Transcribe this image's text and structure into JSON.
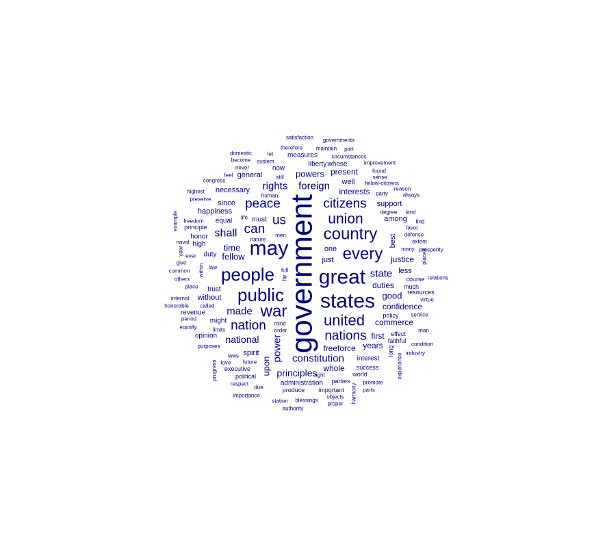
{
  "word_cloud": {
    "color": "#00008b",
    "words": [
      {
        "text": "government"
      },
      {
        "text": "great"
      },
      {
        "text": "states"
      },
      {
        "text": "may"
      },
      {
        "text": "people"
      },
      {
        "text": "public"
      },
      {
        "text": "country"
      },
      {
        "text": "every"
      },
      {
        "text": "war"
      },
      {
        "text": "united"
      },
      {
        "text": "union"
      },
      {
        "text": "nations"
      },
      {
        "text": "citizens"
      },
      {
        "text": "peace"
      },
      {
        "text": "nation"
      },
      {
        "text": "can"
      },
      {
        "text": "us"
      },
      {
        "text": "shall"
      },
      {
        "text": "constitution"
      },
      {
        "text": "made"
      },
      {
        "text": "foreign"
      },
      {
        "text": "state"
      },
      {
        "text": "power"
      },
      {
        "text": "rights"
      },
      {
        "text": "principles"
      },
      {
        "text": "national"
      },
      {
        "text": "upon"
      },
      {
        "text": "powers"
      },
      {
        "text": "time"
      },
      {
        "text": "fellow"
      },
      {
        "text": "interests"
      },
      {
        "text": "good"
      },
      {
        "text": "confidence"
      },
      {
        "text": "commerce"
      },
      {
        "text": "justice"
      },
      {
        "text": "duties"
      },
      {
        "text": "years"
      },
      {
        "text": "whole"
      },
      {
        "text": "freeforce"
      },
      {
        "text": "first"
      },
      {
        "text": "present"
      },
      {
        "text": "support"
      },
      {
        "text": "without"
      },
      {
        "text": "general"
      },
      {
        "text": "less"
      },
      {
        "text": "among"
      },
      {
        "text": "happiness"
      },
      {
        "text": "necessary"
      },
      {
        "text": "spirit"
      },
      {
        "text": "administration"
      },
      {
        "text": "interest"
      },
      {
        "text": "equal"
      },
      {
        "text": "best"
      },
      {
        "text": "one"
      },
      {
        "text": "just"
      },
      {
        "text": "well"
      },
      {
        "text": "since"
      },
      {
        "text": "whose"
      },
      {
        "text": "liberty"
      },
      {
        "text": "measures"
      },
      {
        "text": "now"
      },
      {
        "text": "duty"
      },
      {
        "text": "honor"
      },
      {
        "text": "high"
      },
      {
        "text": "might"
      },
      {
        "text": "opinion"
      },
      {
        "text": "revenue"
      },
      {
        "text": "trust"
      },
      {
        "text": "must"
      },
      {
        "text": "success"
      },
      {
        "text": "long"
      },
      {
        "text": "effect"
      },
      {
        "text": "faithful"
      },
      {
        "text": "policy"
      },
      {
        "text": "course"
      },
      {
        "text": "resources"
      },
      {
        "text": "much"
      },
      {
        "text": "principle"
      },
      {
        "text": "executive"
      },
      {
        "text": "political"
      },
      {
        "text": "produce"
      },
      {
        "text": "important"
      },
      {
        "text": "parties"
      },
      {
        "text": "world"
      },
      {
        "text": "future"
      },
      {
        "text": "laws"
      },
      {
        "text": "love"
      },
      {
        "text": "respect"
      },
      {
        "text": "due"
      },
      {
        "text": "importance"
      },
      {
        "text": "station"
      },
      {
        "text": "blessings"
      },
      {
        "text": "objects"
      },
      {
        "text": "proper"
      },
      {
        "text": "authority"
      },
      {
        "text": "harmony"
      },
      {
        "text": "parts"
      },
      {
        "text": "promote"
      },
      {
        "text": "experience"
      },
      {
        "text": "industry"
      },
      {
        "text": "condition"
      },
      {
        "text": "man"
      },
      {
        "text": "service"
      },
      {
        "text": "virtue"
      },
      {
        "text": "relations"
      },
      {
        "text": "placed"
      },
      {
        "text": "prosperity"
      },
      {
        "text": "many"
      },
      {
        "text": "extent"
      },
      {
        "text": "defense"
      },
      {
        "text": "favor"
      },
      {
        "text": "find"
      },
      {
        "text": "land"
      },
      {
        "text": "degree"
      },
      {
        "text": "party"
      },
      {
        "text": "always"
      },
      {
        "text": "reason"
      },
      {
        "text": "sense"
      },
      {
        "text": "found"
      },
      {
        "text": "improvement"
      },
      {
        "text": "fellow-citizens"
      },
      {
        "text": "circumstances"
      },
      {
        "text": "part"
      },
      {
        "text": "maintain"
      },
      {
        "text": "governments"
      },
      {
        "text": "satisfaction"
      },
      {
        "text": "therefore"
      },
      {
        "text": "let"
      },
      {
        "text": "domestic"
      },
      {
        "text": "become"
      },
      {
        "text": "system"
      },
      {
        "text": "never"
      },
      {
        "text": "feel"
      },
      {
        "text": "congress"
      },
      {
        "text": "still"
      },
      {
        "text": "human"
      },
      {
        "text": "highest"
      },
      {
        "text": "preserve"
      },
      {
        "text": "freedom"
      },
      {
        "text": "example"
      },
      {
        "text": "life"
      },
      {
        "text": "nature"
      },
      {
        "text": "men"
      },
      {
        "text": "naval"
      },
      {
        "text": "year"
      },
      {
        "text": "ever"
      },
      {
        "text": "give"
      },
      {
        "text": "within"
      },
      {
        "text": "law"
      },
      {
        "text": "common"
      },
      {
        "text": "others"
      },
      {
        "text": "place"
      },
      {
        "text": "full"
      },
      {
        "text": "far"
      },
      {
        "text": "called"
      },
      {
        "text": "internal"
      },
      {
        "text": "honorable"
      },
      {
        "text": "period"
      },
      {
        "text": "equally"
      },
      {
        "text": "limits"
      },
      {
        "text": "mind"
      },
      {
        "text": "order"
      },
      {
        "text": "purposes"
      },
      {
        "text": "progress"
      },
      {
        "text": "right"
      }
    ]
  }
}
